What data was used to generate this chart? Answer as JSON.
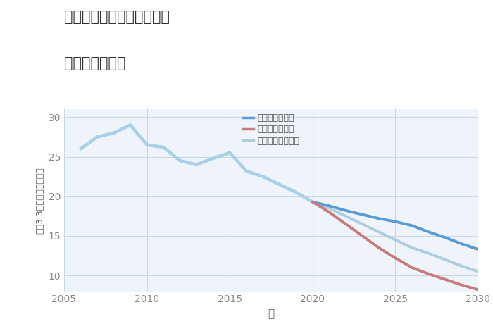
{
  "title_line1": "愛知県稲沢市平和町東城の",
  "title_line2": "土地の価格推移",
  "xlabel": "年",
  "ylabel": "平（3.3㎡）単価（万円）",
  "background_color": "#ffffff",
  "plot_bg_color": "#eef4f9",
  "grid_color": "#c8d8e8",
  "years_historical": [
    2006,
    2007,
    2008,
    2009,
    2010,
    2011,
    2012,
    2013,
    2014,
    2015,
    2016,
    2017,
    2018,
    2019,
    2020
  ],
  "values_historical": [
    26.0,
    27.5,
    28.0,
    29.0,
    26.5,
    26.2,
    24.5,
    24.0,
    24.8,
    25.5,
    23.2,
    22.5,
    21.5,
    20.5,
    19.3
  ],
  "years_future": [
    2020,
    2021,
    2022,
    2023,
    2024,
    2025,
    2026,
    2027,
    2028,
    2029,
    2030
  ],
  "values_good": [
    19.3,
    18.8,
    18.2,
    17.7,
    17.2,
    16.8,
    16.3,
    15.5,
    14.8,
    14.0,
    13.3
  ],
  "values_normal": [
    19.3,
    18.5,
    17.5,
    16.5,
    15.5,
    14.5,
    13.5,
    12.8,
    12.0,
    11.2,
    10.5
  ],
  "values_bad": [
    19.3,
    18.0,
    16.5,
    15.0,
    13.5,
    12.2,
    11.0,
    10.2,
    9.5,
    8.8,
    8.2
  ],
  "color_historical": "#a8d0e6",
  "color_good": "#5b9bd5",
  "color_normal": "#aecde0",
  "color_bad": "#c97b7b",
  "ylim": [
    8,
    31
  ],
  "xlim": [
    2005,
    2030
  ],
  "yticks": [
    10,
    15,
    20,
    25,
    30
  ],
  "xticks": [
    2005,
    2010,
    2015,
    2020,
    2025,
    2030
  ],
  "legend_labels": [
    "グッドシナリオ",
    "バッドシナリオ",
    "ノーマルシナリオ"
  ],
  "line_width": 2.8
}
